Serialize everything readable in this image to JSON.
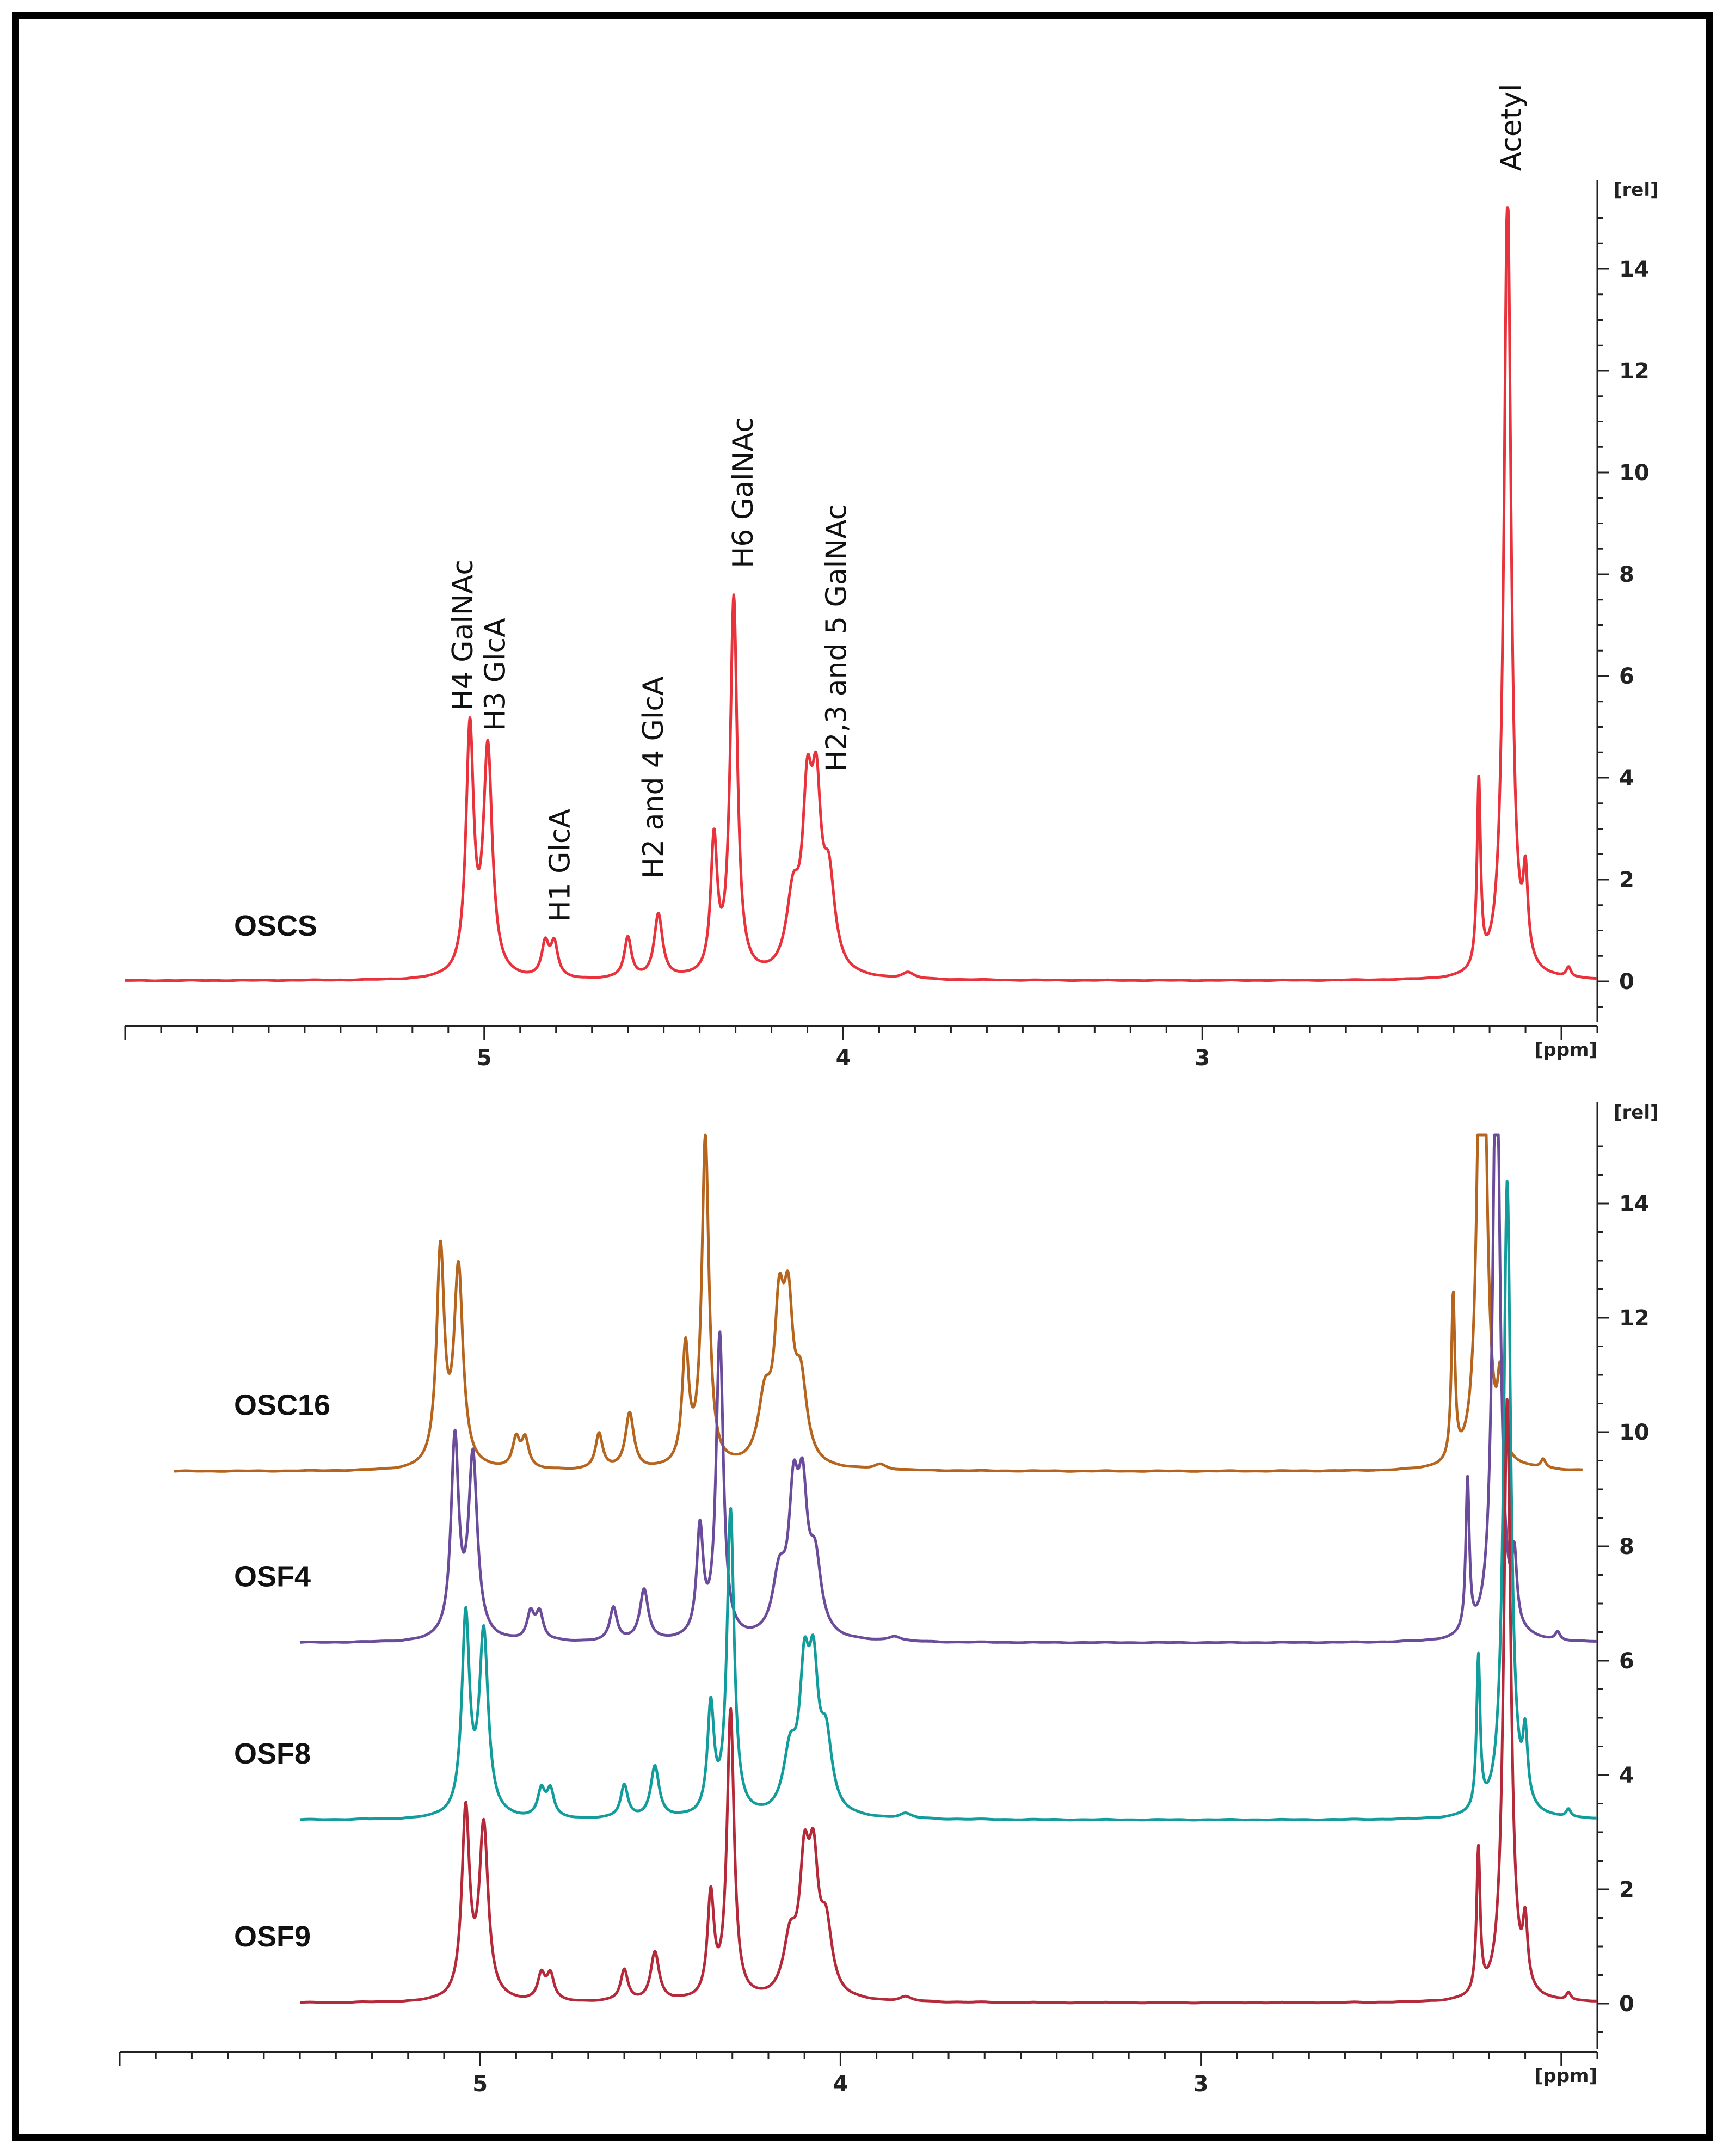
{
  "chart_data": [
    {
      "type": "line",
      "panel": "top",
      "title": "",
      "xlabel": "[ppm]",
      "ylabel": "[rel]",
      "xlim": [
        6.0,
        1.9
      ],
      "ylim": [
        -1,
        15.5
      ],
      "x_ticks": [
        5,
        4,
        3
      ],
      "y_ticks": [
        0,
        2,
        4,
        6,
        8,
        10,
        12,
        14
      ],
      "grid": false,
      "peak_shape": [
        {
          "ppm": 5.04,
          "height": 4.8,
          "width": 0.013
        },
        {
          "ppm": 4.99,
          "height": 4.4,
          "width": 0.015
        },
        {
          "ppm": 4.83,
          "height": 0.65,
          "width": 0.012
        },
        {
          "ppm": 4.805,
          "height": 0.65,
          "width": 0.012
        },
        {
          "ppm": 4.6,
          "height": 0.8,
          "width": 0.012
        },
        {
          "ppm": 4.515,
          "height": 1.25,
          "width": 0.014
        },
        {
          "ppm": 4.36,
          "height": 2.6,
          "width": 0.011
        },
        {
          "ppm": 4.305,
          "height": 7.4,
          "width": 0.012
        },
        {
          "ppm": 4.14,
          "height": 1.4,
          "width": 0.022
        },
        {
          "ppm": 4.1,
          "height": 3.0,
          "width": 0.016
        },
        {
          "ppm": 4.075,
          "height": 3.0,
          "width": 0.016
        },
        {
          "ppm": 4.04,
          "height": 1.7,
          "width": 0.02
        },
        {
          "ppm": 3.82,
          "height": 0.12,
          "width": 0.02
        },
        {
          "ppm": 2.23,
          "height": 3.7,
          "width": 0.006
        },
        {
          "ppm": 2.15,
          "height": 15.5,
          "width": 0.012
        },
        {
          "ppm": 2.1,
          "height": 1.6,
          "width": 0.008
        },
        {
          "ppm": 1.98,
          "height": 0.2,
          "width": 0.008
        }
      ],
      "series": [
        {
          "name": "OSCS",
          "color": "#e8323c",
          "offset": 0,
          "scale": 1.0
        }
      ],
      "annotations": [
        {
          "text": "H4 GalNAc",
          "x": 5.06,
          "y": 5.0
        },
        {
          "text": "H3 GlcA",
          "x": 4.97,
          "y": 4.6
        },
        {
          "text": "H1 GlcA",
          "x": 4.79,
          "y": 0.85
        },
        {
          "text": "H2 and 4 GlcA",
          "x": 4.53,
          "y": 1.7
        },
        {
          "text": "H6 GalNAc",
          "x": 4.28,
          "y": 7.8
        },
        {
          "text": "H2,3 and 5 GalNAc",
          "x": 4.02,
          "y": 3.8
        },
        {
          "text": "Acetyl",
          "x": 2.14,
          "y": 15.6
        }
      ]
    },
    {
      "type": "line",
      "panel": "bottom",
      "title": "",
      "xlabel": "[ppm]",
      "ylabel": "[rel]",
      "xlim": [
        6.0,
        1.9
      ],
      "ylim": [
        -1,
        15.5
      ],
      "x_ticks": [
        5,
        4,
        3
      ],
      "y_ticks": [
        0,
        2,
        4,
        6,
        8,
        10,
        12,
        14
      ],
      "grid": false,
      "series": [
        {
          "name": "OSC16",
          "color": "#b5651d",
          "offset": 9.3,
          "scale": 0.78,
          "shift": 0.07
        },
        {
          "name": "OSF4",
          "color": "#6b4c9a",
          "offset": 6.3,
          "scale": 0.72,
          "shift": 0.03
        },
        {
          "name": "OSF8",
          "color": "#139c9c",
          "offset": 3.2,
          "scale": 0.72,
          "shift": 0.0
        },
        {
          "name": "OSF9",
          "color": "#b52a3a",
          "offset": 0.0,
          "scale": 0.68,
          "shift": 0.0
        }
      ]
    }
  ]
}
